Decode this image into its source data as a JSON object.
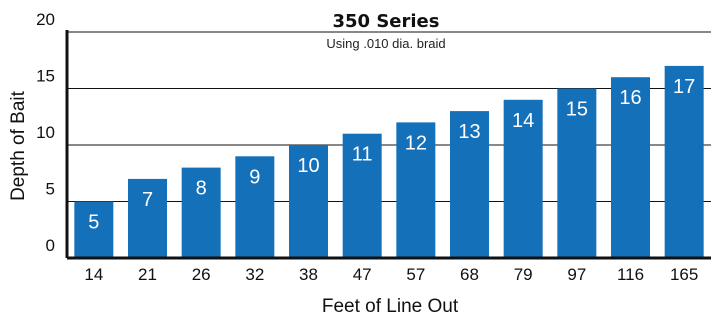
{
  "chart_data": {
    "type": "bar",
    "title": "350 Series",
    "subtitle": "Using .010 dia. braid",
    "xlabel": "Feet of Line Out",
    "ylabel": "Depth of Bait",
    "categories": [
      "14",
      "21",
      "26",
      "32",
      "38",
      "47",
      "57",
      "68",
      "79",
      "97",
      "116",
      "165"
    ],
    "values": [
      5,
      7,
      8,
      9,
      10,
      11,
      12,
      13,
      14,
      15,
      16,
      17
    ],
    "data_labels": [
      "5",
      "7",
      "8",
      "9",
      "10",
      "11",
      "12",
      "13",
      "14",
      "15",
      "16",
      "17"
    ],
    "y_ticks": [
      "0",
      "5",
      "10",
      "15",
      "20"
    ],
    "ylim": [
      0,
      20
    ],
    "grid": true,
    "bar_color": "#1470b9"
  }
}
